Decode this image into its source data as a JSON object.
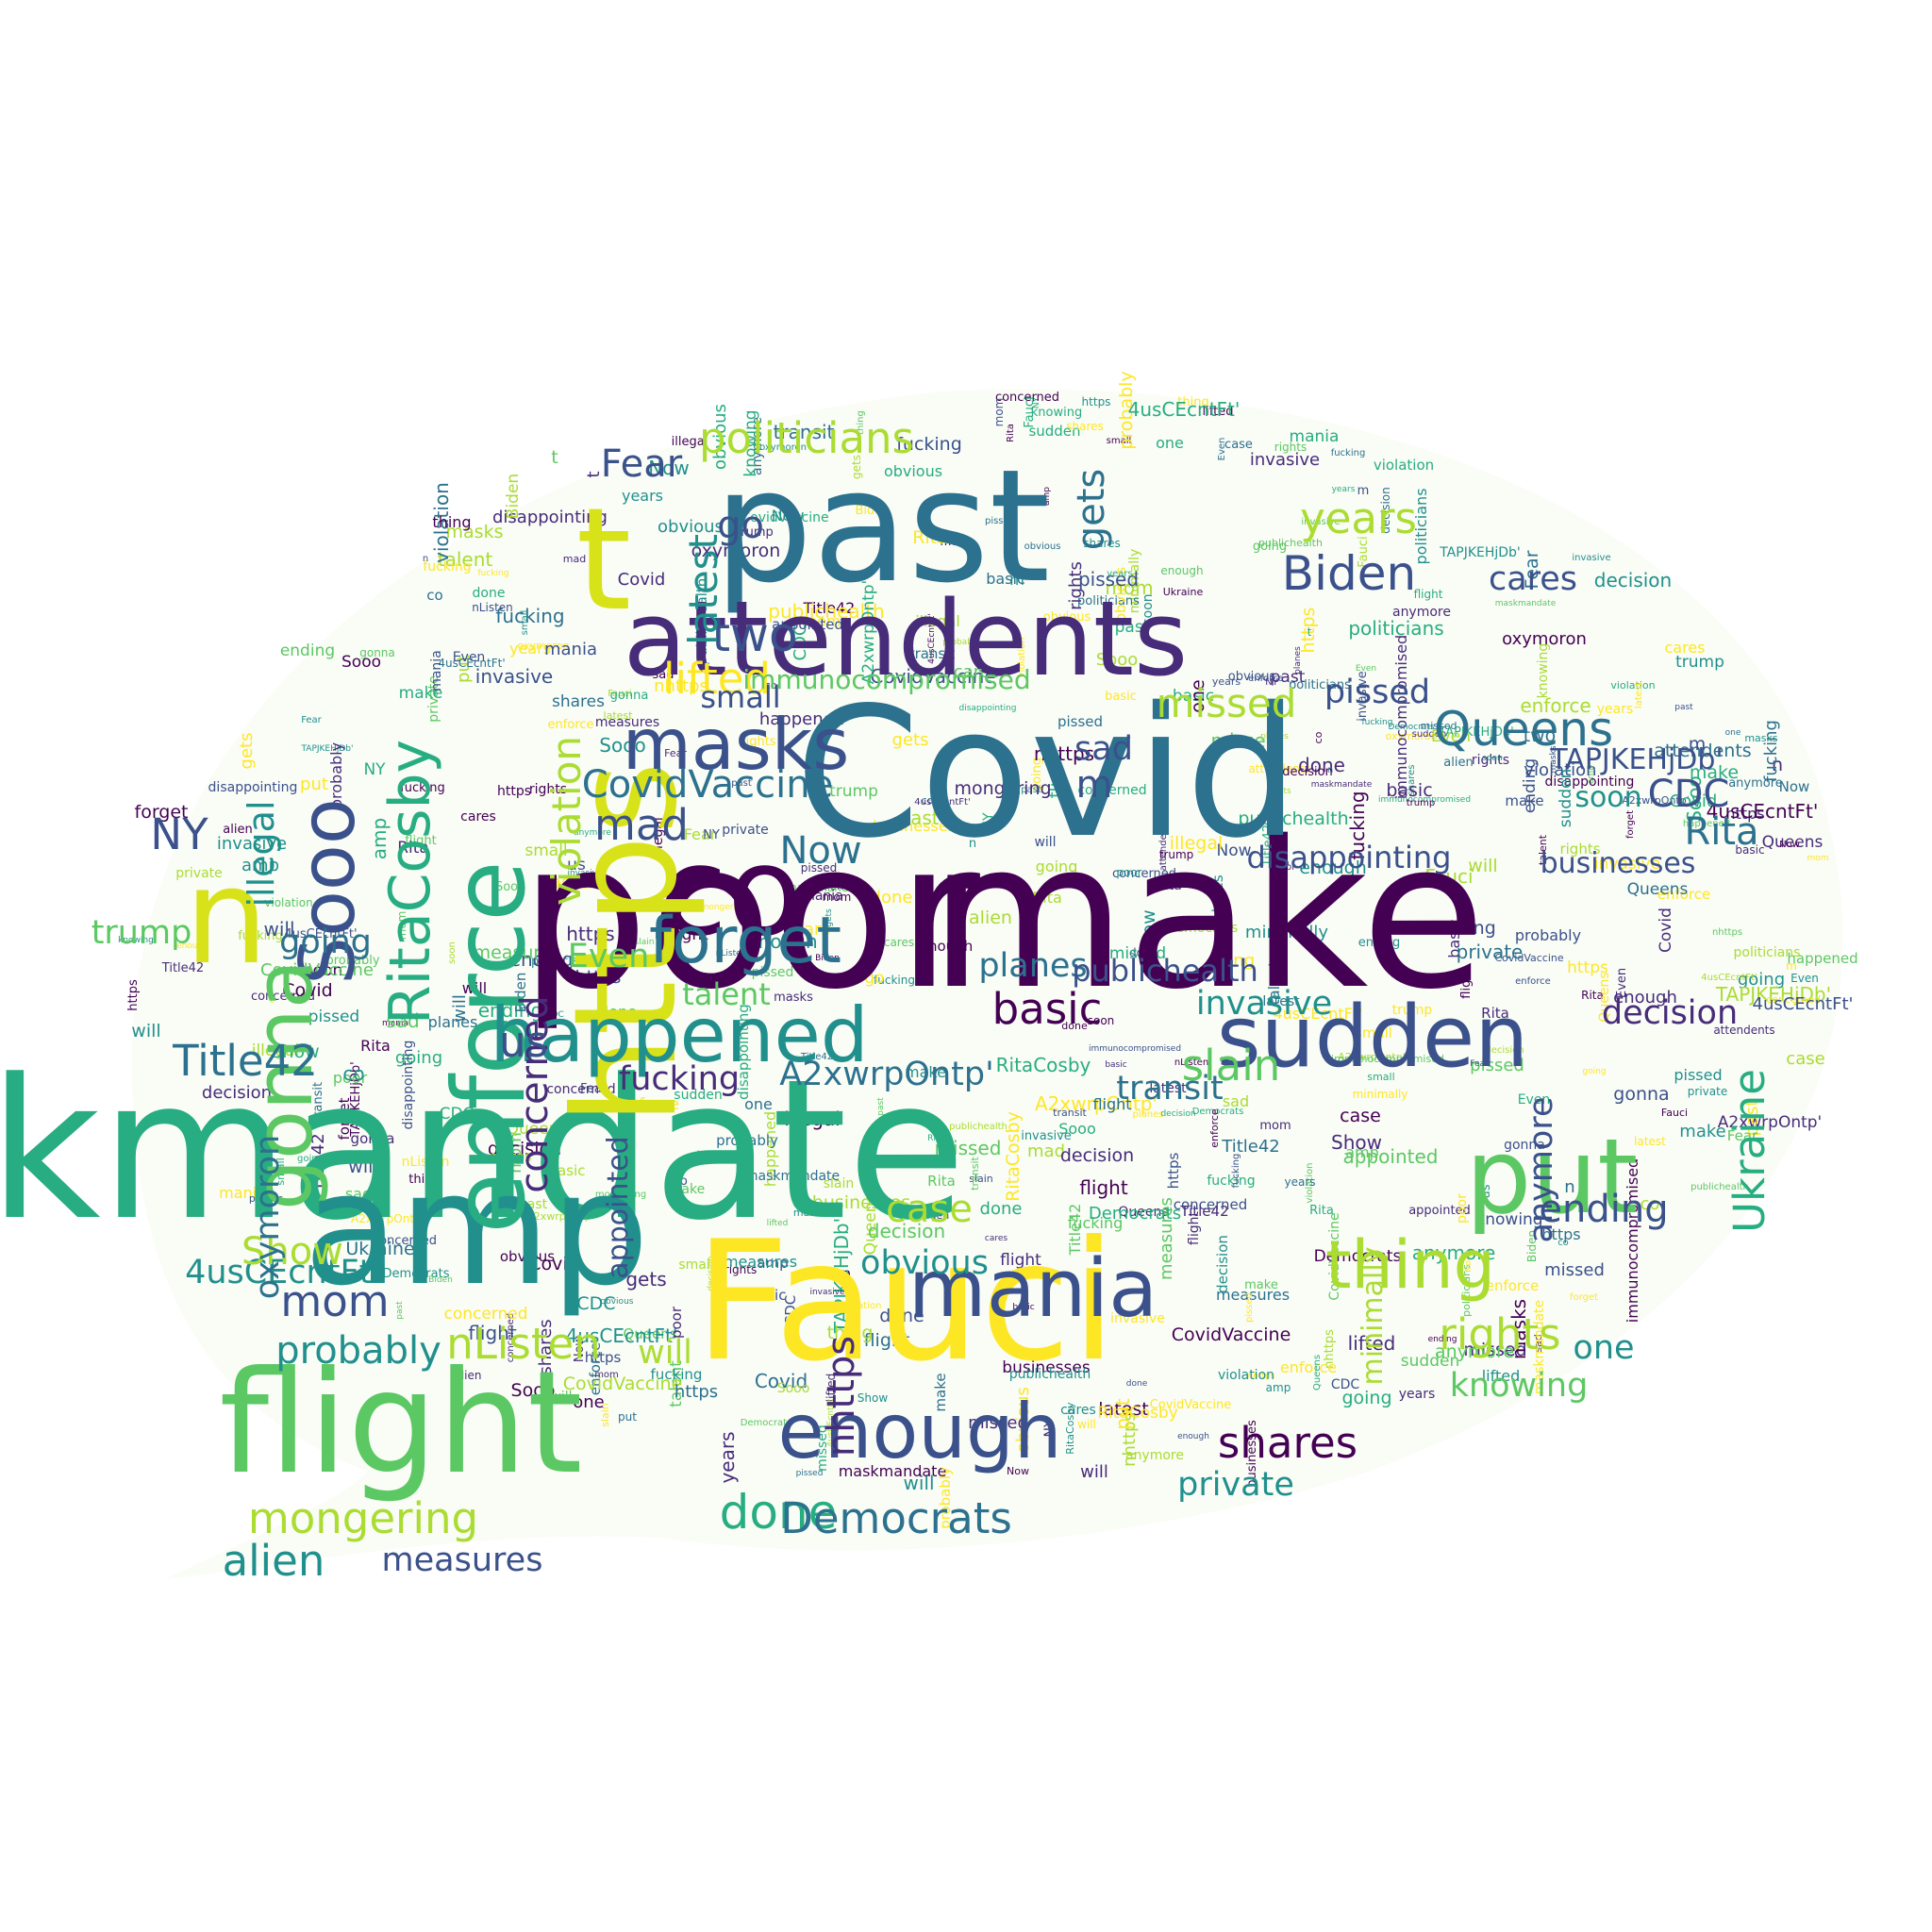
{
  "palette": [
    "#440154",
    "#472c7a",
    "#3b518b",
    "#2c718e",
    "#21908d",
    "#27ad81",
    "#5cc863",
    "#aadc32",
    "#fde725"
  ],
  "words": [
    {
      "text": "maskmandate",
      "color": "#27ad81"
    },
    {
      "text": "poor",
      "color": "#440154"
    },
    {
      "text": "make",
      "color": "#440154"
    },
    {
      "text": "Covid",
      "color": "#2c718e"
    },
    {
      "text": "Fauci",
      "color": "#fde725"
    },
    {
      "text": "amp",
      "color": "#21908d"
    },
    {
      "text": "past",
      "color": "#2c718e"
    },
    {
      "text": "https",
      "color": "#d8e219"
    },
    {
      "text": "flight",
      "color": "#5cc863"
    },
    {
      "text": "attendents",
      "color": "#472c7a"
    },
    {
      "text": "enforce",
      "color": "#27ad81"
    },
    {
      "text": "co",
      "color": "#440154"
    },
    {
      "text": "n",
      "color": "#d8e219"
    },
    {
      "text": "t",
      "color": "#d8e219"
    },
    {
      "text": "put",
      "color": "#5cc863"
    },
    {
      "text": "sudden",
      "color": "#3b518b"
    },
    {
      "text": "mania",
      "color": "#3b518b"
    },
    {
      "text": "enough",
      "color": "#3b518b"
    },
    {
      "text": "happened",
      "color": "#21908d"
    },
    {
      "text": "Sooo",
      "color": "#3b518b"
    },
    {
      "text": "gonna",
      "color": "#5cc863"
    },
    {
      "text": "masks",
      "color": "#3b518b"
    },
    {
      "text": "forget",
      "color": "#2c718e"
    },
    {
      "text": "thing",
      "color": "#aadc32"
    },
    {
      "text": "RitaCosby",
      "color": "#27ad81"
    },
    {
      "text": "violation",
      "color": "#aadc32"
    },
    {
      "text": "Biden",
      "color": "#3b518b"
    },
    {
      "text": "Queens",
      "color": "#2c718e"
    },
    {
      "text": "shares",
      "color": "#440154"
    },
    {
      "text": "done",
      "color": "#27ad81"
    },
    {
      "text": "Democrats",
      "color": "#2c718e"
    },
    {
      "text": "mongering",
      "color": "#aadc32"
    },
    {
      "text": "alien",
      "color": "#21908d"
    },
    {
      "text": "two",
      "color": "#3b518b"
    },
    {
      "text": "years",
      "color": "#aadc32"
    },
    {
      "text": "CovidVaccine",
      "color": "#2c718e"
    },
    {
      "text": "politicians",
      "color": "#aadc32"
    },
    {
      "text": "Title42",
      "color": "#2c718e"
    },
    {
      "text": "Ukraine",
      "color": "#27ad81"
    },
    {
      "text": "latest",
      "color": "#21908d"
    },
    {
      "text": "illegal",
      "color": "#21908d"
    },
    {
      "text": "concerned",
      "color": "#472c7a"
    },
    {
      "text": "mom",
      "color": "#3b518b"
    },
    {
      "text": "probably",
      "color": "#21908d"
    },
    {
      "text": "nListen",
      "color": "#aadc32"
    },
    {
      "text": "rights",
      "color": "#aadc32"
    },
    {
      "text": "knowing",
      "color": "#5cc863"
    },
    {
      "text": "private",
      "color": "#21908d"
    },
    {
      "text": "ending",
      "color": "#3b518b"
    },
    {
      "text": "CDC",
      "color": "#3b518b"
    },
    {
      "text": "Rita",
      "color": "#2c718e"
    },
    {
      "text": "slain",
      "color": "#5cc863"
    },
    {
      "text": "basic",
      "color": "#440154"
    },
    {
      "text": "planes",
      "color": "#2c718e"
    },
    {
      "text": "publichealth",
      "color": "#3b518b"
    },
    {
      "text": "invasive",
      "color": "#21908d"
    },
    {
      "text": "decision",
      "color": "#472c7a"
    },
    {
      "text": "disappointing",
      "color": "#3b518b"
    },
    {
      "text": "businesses",
      "color": "#3b518b"
    },
    {
      "text": "soon",
      "color": "#21908d"
    },
    {
      "text": "missed",
      "color": "#aadc32"
    },
    {
      "text": "lifted",
      "color": "#fde725"
    },
    {
      "text": "immunocompromised",
      "color": "#5cc863"
    },
    {
      "text": "fucking",
      "color": "#472c7a"
    },
    {
      "text": "obvious",
      "color": "#21908d"
    },
    {
      "text": "transit",
      "color": "#2c718e"
    },
    {
      "text": "appointed",
      "color": "#3b518b"
    },
    {
      "text": "A2xwrpOntp'",
      "color": "#2c718e"
    },
    {
      "text": "TAPJKEHjDb'",
      "color": "#3b518b"
    },
    {
      "text": "4usCEcntFt'",
      "color": "#21908d"
    },
    {
      "text": "nhttps",
      "color": "#472c7a"
    },
    {
      "text": "mad",
      "color": "#3b518b"
    },
    {
      "text": "sad",
      "color": "#3b518b"
    },
    {
      "text": "talent",
      "color": "#5cc863"
    },
    {
      "text": "Even",
      "color": "#5cc863"
    },
    {
      "text": "going",
      "color": "#2c718e"
    },
    {
      "text": "Now",
      "color": "#2c718e"
    },
    {
      "text": "Show",
      "color": "#aadc32"
    },
    {
      "text": "cares",
      "color": "#3b518b"
    },
    {
      "text": "NY",
      "color": "#3b518b"
    },
    {
      "text": "Fear",
      "color": "#3b518b"
    },
    {
      "text": "us",
      "color": "#3b518b"
    },
    {
      "text": "case",
      "color": "#aadc32"
    },
    {
      "text": "measures",
      "color": "#3b518b"
    },
    {
      "text": "trump",
      "color": "#5cc863"
    },
    {
      "text": "oxymoron",
      "color": "#2c718e"
    },
    {
      "text": "will",
      "color": "#aadc32"
    },
    {
      "text": "one",
      "color": "#21908d"
    },
    {
      "text": "gets",
      "color": "#2c718e"
    },
    {
      "text": "small",
      "color": "#3b518b"
    },
    {
      "text": "anymore",
      "color": "#3b518b"
    },
    {
      "text": "minimally",
      "color": "#aadc32"
    },
    {
      "text": "pissed",
      "color": "#3b518b"
    },
    {
      "text": "m",
      "color": "#3b518b"
    },
    {
      "text": "go",
      "color": "#3b518b"
    }
  ]
}
